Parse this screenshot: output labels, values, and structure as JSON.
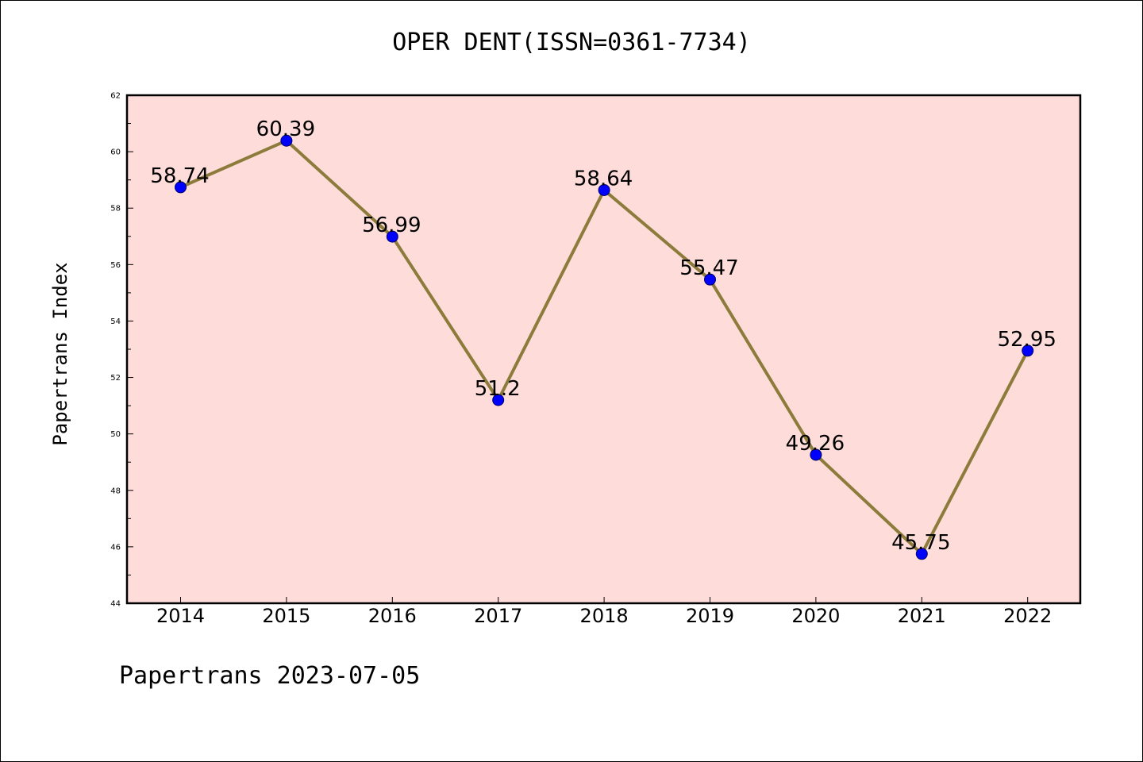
{
  "chart_data": {
    "type": "line",
    "title": "OPER DENT(ISSN=0361-7734)",
    "xlabel": "",
    "ylabel": "Papertrans Index",
    "footer": "Papertrans 2023-07-05",
    "categories": [
      "2014",
      "2015",
      "2016",
      "2017",
      "2018",
      "2019",
      "2020",
      "2021",
      "2022"
    ],
    "series": [
      {
        "values": [
          58.74,
          60.39,
          56.99,
          51.2,
          58.64,
          55.47,
          49.26,
          45.75,
          52.95
        ],
        "labels": [
          "58.74",
          "60.39",
          "56.99",
          "51.2",
          "58.64",
          "55.47",
          "49.26",
          "45.75",
          "52.95"
        ]
      }
    ],
    "ylim": [
      44,
      62
    ],
    "yticks": [
      "44",
      "46",
      "48",
      "50",
      "52",
      "54",
      "56",
      "58",
      "60",
      "62"
    ],
    "grid": false,
    "legend": "none",
    "colors": {
      "plot_background": "#fddcd9",
      "line": "#8c7b3a",
      "marker": "#0000ff",
      "axes": "#000000"
    }
  }
}
